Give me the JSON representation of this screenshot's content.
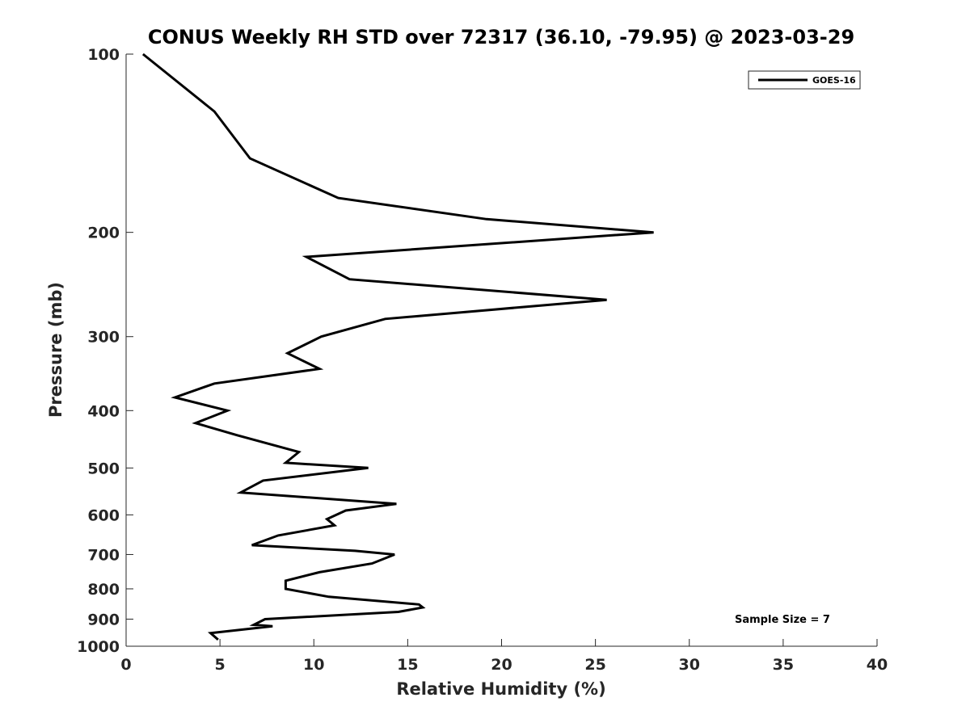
{
  "chart_data": {
    "type": "line",
    "title": "CONUS Weekly RH STD over 72317 (36.10, -79.95) @ 2023-03-29",
    "xlabel": "Relative Humidity (%)",
    "ylabel": "Pressure (mb)",
    "xlim": [
      0,
      40
    ],
    "ylim": [
      100,
      1000
    ],
    "y_scale": "log",
    "y_reversed": true,
    "x_ticks": [
      "0",
      "5",
      "10",
      "15",
      "20",
      "25",
      "30",
      "35",
      "40"
    ],
    "y_ticks": [
      "100",
      "200",
      "300",
      "400",
      "500",
      "600",
      "700",
      "800",
      "900",
      "1000"
    ],
    "grid": false,
    "legend_position": "top-right",
    "series": [
      {
        "name": "GOES-16",
        "color": "#000000",
        "x": [
          0.9,
          4.7,
          6.6,
          11.3,
          19.2,
          28.1,
          9.6,
          11.9,
          25.6,
          13.8,
          10.4,
          8.6,
          10.3,
          4.7,
          2.6,
          5.4,
          3.7,
          5.9,
          9.2,
          8.5,
          12.9,
          7.3,
          6.1,
          14.4,
          11.7,
          10.7,
          11.1,
          8.1,
          6.7,
          12.2,
          14.3,
          13.1,
          10.3,
          8.5,
          8.5,
          10.8,
          15.6,
          15.8,
          14.5,
          7.4,
          6.8,
          7.8,
          4.5,
          4.9
        ],
        "y": [
          100,
          125,
          150,
          175,
          190,
          200,
          220,
          240,
          260,
          280,
          300,
          320,
          340,
          360,
          380,
          400,
          420,
          440,
          470,
          490,
          500,
          525,
          550,
          575,
          590,
          610,
          625,
          650,
          675,
          690,
          700,
          725,
          750,
          775,
          800,
          825,
          850,
          860,
          875,
          900,
          920,
          925,
          950,
          975
        ]
      }
    ],
    "annotation": "Sample Size = 7"
  }
}
